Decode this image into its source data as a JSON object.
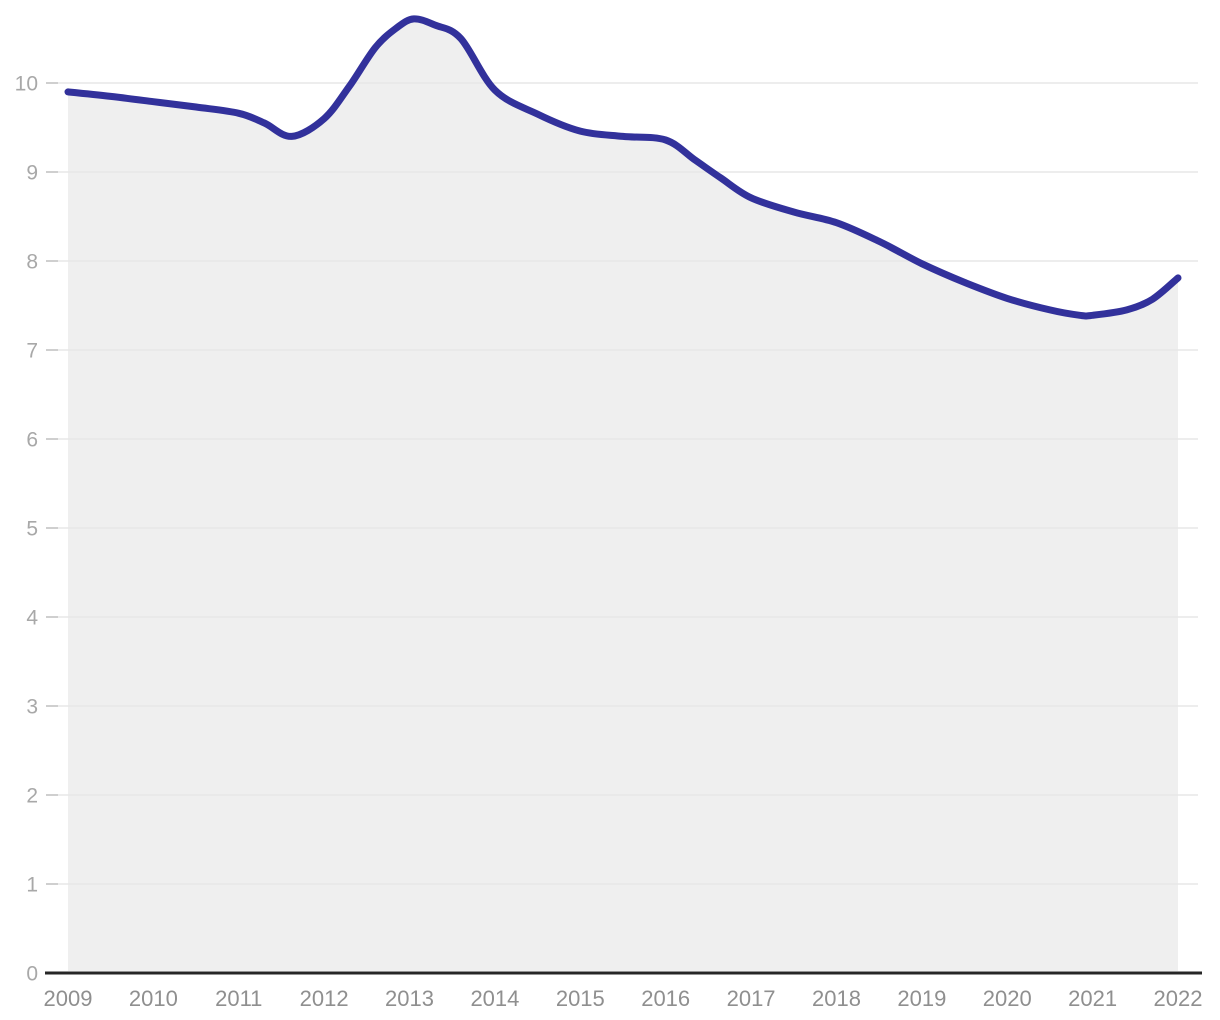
{
  "colors": {
    "background": "#ffffff",
    "line": "#32319b",
    "area_fill": "#efefef",
    "gridline": "#e7e7e7",
    "tick": "#cfcfcf",
    "axis_line": "#262626",
    "y_label_color": "#a8a8a8",
    "x_label_color": "#8f8f8f"
  },
  "chart_data": {
    "type": "area",
    "title": "",
    "xlabel": "",
    "ylabel": "",
    "legend": false,
    "grid": true,
    "ylim": [
      0,
      11
    ],
    "y_tick_labels": [
      "0",
      "1",
      "2",
      "3",
      "4",
      "5",
      "6",
      "7",
      "8",
      "9",
      "10"
    ],
    "y_tick_values": [
      0,
      1,
      2,
      3,
      4,
      5,
      6,
      7,
      8,
      9,
      10
    ],
    "categories": [
      "2009",
      "2010",
      "2011",
      "2012",
      "2013",
      "2014",
      "2015",
      "2016",
      "2017",
      "2018",
      "2019",
      "2020",
      "2021",
      "2022"
    ],
    "values": [
      9.9,
      9.8,
      9.65,
      9.6,
      10.7,
      9.9,
      9.45,
      9.35,
      8.7,
      8.45,
      7.95,
      7.6,
      7.4,
      7.8
    ],
    "annotations": {
      "local_min_before_2012": 9.4,
      "peak_2013": 10.72,
      "min_2021": 7.39,
      "end_2022": 7.8
    },
    "smooth_points": [
      [
        2009.0,
        9.9
      ],
      [
        2009.5,
        9.85
      ],
      [
        2010.0,
        9.79
      ],
      [
        2010.5,
        9.73
      ],
      [
        2011.0,
        9.66
      ],
      [
        2011.3,
        9.55
      ],
      [
        2011.62,
        9.4
      ],
      [
        2012.0,
        9.6
      ],
      [
        2012.3,
        9.97
      ],
      [
        2012.6,
        10.4
      ],
      [
        2012.85,
        10.62
      ],
      [
        2013.05,
        10.72
      ],
      [
        2013.3,
        10.65
      ],
      [
        2013.6,
        10.5
      ],
      [
        2014.0,
        9.92
      ],
      [
        2014.5,
        9.65
      ],
      [
        2015.0,
        9.46
      ],
      [
        2015.5,
        9.4
      ],
      [
        2016.0,
        9.36
      ],
      [
        2016.35,
        9.13
      ],
      [
        2016.65,
        8.93
      ],
      [
        2017.0,
        8.71
      ],
      [
        2017.5,
        8.55
      ],
      [
        2018.0,
        8.43
      ],
      [
        2018.5,
        8.22
      ],
      [
        2019.0,
        7.97
      ],
      [
        2019.5,
        7.76
      ],
      [
        2020.0,
        7.58
      ],
      [
        2020.5,
        7.45
      ],
      [
        2020.85,
        7.39
      ],
      [
        2021.0,
        7.39
      ],
      [
        2021.4,
        7.45
      ],
      [
        2021.7,
        7.57
      ],
      [
        2022.0,
        7.81
      ]
    ]
  }
}
